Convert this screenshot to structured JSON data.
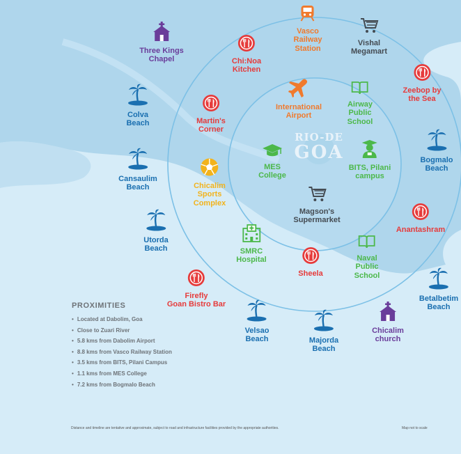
{
  "center": {
    "line1": "RIO-DE",
    "line2": "GOA"
  },
  "pois": [
    {
      "id": "three-kings-chapel",
      "label": "Three Kings\nChapel",
      "icon": "chapel-icon",
      "color": "purple"
    },
    {
      "id": "chinoa-kitchen",
      "label": "Chi:Noa\nKitchen",
      "icon": "restaurant-icon",
      "color": "red"
    },
    {
      "id": "vasco-railway-station",
      "label": "Vasco\nRailway\nStation",
      "icon": "train-icon",
      "color": "orange"
    },
    {
      "id": "vishal-megamart",
      "label": "Vishal\nMegamart",
      "icon": "shopping-cart-icon",
      "color": "gray"
    },
    {
      "id": "zeebop-by-the-sea",
      "label": "Zeebop by\nthe Sea",
      "icon": "restaurant-icon",
      "color": "red"
    },
    {
      "id": "colva-beach",
      "label": "Colva\nBeach",
      "icon": "palm-beach-icon",
      "color": "blue"
    },
    {
      "id": "martins-corner",
      "label": "Martin's\nCorner",
      "icon": "restaurant-icon",
      "color": "red"
    },
    {
      "id": "international-airport",
      "label": "International\nAirport",
      "icon": "airplane-icon",
      "color": "orange"
    },
    {
      "id": "airway-public-school",
      "label": "Airway\nPublic\nSchool",
      "icon": "book-icon",
      "color": "green"
    },
    {
      "id": "bogmalo-beach",
      "label": "Bogmalo\nBeach",
      "icon": "palm-beach-icon",
      "color": "blue"
    },
    {
      "id": "cansaulim-beach",
      "label": "Cansaulim\nBeach",
      "icon": "palm-beach-icon",
      "color": "blue"
    },
    {
      "id": "chicalim-sports-complex",
      "label": "Chicalim\nSports\nComplex",
      "icon": "ball-icon",
      "color": "yellow"
    },
    {
      "id": "mes-college",
      "label": "MES\nCollege",
      "icon": "graduation-cap-icon",
      "color": "green"
    },
    {
      "id": "bits-pilani-campus",
      "label": "BITS, Pilani\ncampus",
      "icon": "graduate-icon",
      "color": "green"
    },
    {
      "id": "magsons-supermarket",
      "label": "Magson's\nSupermarket",
      "icon": "shopping-cart-icon",
      "color": "gray"
    },
    {
      "id": "anantashram",
      "label": "Anantashram",
      "icon": "restaurant-icon",
      "color": "red"
    },
    {
      "id": "utorda-beach",
      "label": "Utorda\nBeach",
      "icon": "palm-beach-icon",
      "color": "blue"
    },
    {
      "id": "smrc-hospital",
      "label": "SMRC\nHospital",
      "icon": "hospital-icon",
      "color": "green"
    },
    {
      "id": "sheela",
      "label": "Sheela",
      "icon": "restaurant-icon",
      "color": "red"
    },
    {
      "id": "naval-public-school",
      "label": "Naval\nPublic\nSchool",
      "icon": "book-icon",
      "color": "green"
    },
    {
      "id": "betalbetim-beach",
      "label": "Betalbetim\nBeach",
      "icon": "palm-beach-icon",
      "color": "blue"
    },
    {
      "id": "firefly-goan-bistro-bar",
      "label": "Firefly\nGoan Bistro Bar",
      "icon": "restaurant-icon",
      "color": "red"
    },
    {
      "id": "velsao-beach",
      "label": "Velsao\nBeach",
      "icon": "palm-beach-icon",
      "color": "blue"
    },
    {
      "id": "majorda-beach",
      "label": "Majorda\nBeach",
      "icon": "palm-beach-icon",
      "color": "blue"
    },
    {
      "id": "chicalim-church",
      "label": "Chicalim\nchurch",
      "icon": "chapel-icon",
      "color": "purple"
    }
  ],
  "proximities": {
    "title": "PROXIMITIES",
    "items": [
      "Located at Dabolim, Goa",
      "Close to Zuari River",
      "5.8 kms from Dabolim Airport",
      "8.8 kms from Vasco Railway Station",
      "3.5 kms from BITS, Pilani Campus",
      "1.1 kms from MES College",
      "7.2 kms from Bogmalo Beach"
    ]
  },
  "footer": {
    "disclaimer": "Distance and timeline are tentative and approximate, subject to road and infrastructure facilities provided by the appropriate authorities.",
    "scale_note": "Map not to scale"
  },
  "colors": {
    "sea": "#d6ecf8",
    "land": "#a8d2ea",
    "ring": "#7cc0e6",
    "purple": "#6a3d9a",
    "red": "#e63b3b",
    "blue": "#1a6fb0",
    "orange": "#f07a2d",
    "gray": "#444b52",
    "green": "#4cb84a",
    "yellow": "#f2b31c"
  }
}
